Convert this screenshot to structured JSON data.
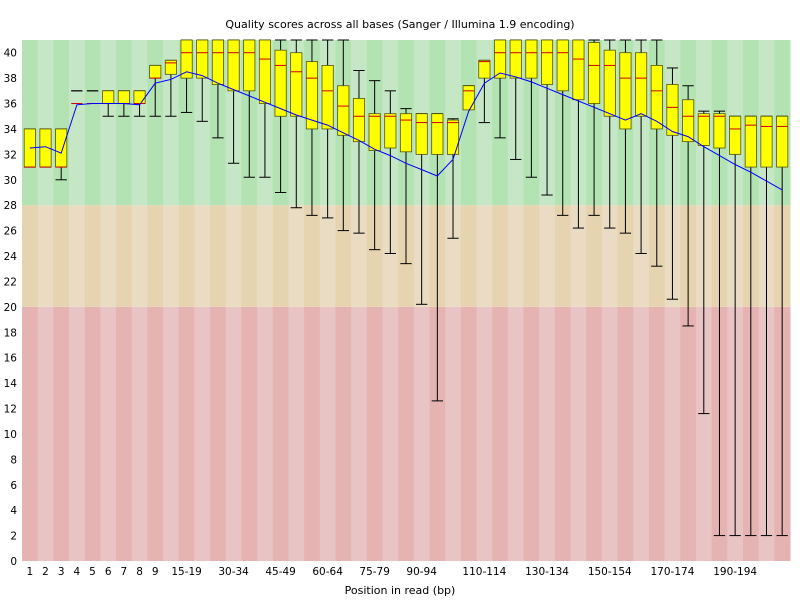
{
  "chart_data": {
    "type": "boxplot",
    "title": "Quality scores across all bases (Sanger / Illumina 1.9 encoding)",
    "xlabel": "Position in read (bp)",
    "ylabel": "",
    "ylim": [
      0,
      41
    ],
    "yticks": [
      0,
      2,
      4,
      6,
      8,
      10,
      12,
      14,
      16,
      18,
      20,
      22,
      24,
      26,
      28,
      30,
      32,
      34,
      36,
      38,
      40
    ],
    "bands": [
      {
        "name": "poor",
        "from": 0,
        "to": 20,
        "color_a": "#e6b3b3",
        "color_b": "#e8c4c4"
      },
      {
        "name": "reasonable",
        "from": 20,
        "to": 28,
        "color_a": "#e6d4b0",
        "color_b": "#e9dcc2"
      },
      {
        "name": "good",
        "from": 28,
        "to": 41,
        "color_a": "#b3e3b3",
        "color_b": "#c6e7c6"
      }
    ],
    "colors": {
      "box": "#ffff00",
      "box_stroke": "#555500",
      "median": "#cc0000",
      "mean_line": "#0000ff",
      "whisker": "#000000"
    },
    "categories": [
      "1",
      "2",
      "3",
      "4",
      "5",
      "6",
      "7",
      "8",
      "9",
      "10-14",
      "15-19",
      "20-24",
      "25-29",
      "30-34",
      "35-39",
      "40-44",
      "45-49",
      "50-54",
      "55-59",
      "60-64",
      "65-69",
      "70-74",
      "75-79",
      "80-84",
      "85-89",
      "90-94",
      "95-99",
      "100-104",
      "105-109",
      "110-114",
      "115-119",
      "120-124",
      "125-129",
      "130-134",
      "135-139",
      "140-144",
      "145-149",
      "150-154",
      "155-159",
      "160-164",
      "165-169",
      "170-174",
      "175-179",
      "180-184",
      "185-189",
      "190-194",
      "195-199",
      "200-204",
      "205-209"
    ],
    "tick_labels": [
      "1",
      "2",
      "3",
      "4",
      "5",
      "6",
      "7",
      "8",
      "9",
      "15-19",
      "30-34",
      "45-49",
      "60-64",
      "75-79",
      "90-94",
      "110-114",
      "130-134",
      "150-154",
      "170-174",
      "190-194"
    ],
    "tick_indices": [
      0,
      1,
      2,
      3,
      4,
      5,
      6,
      7,
      8,
      10,
      13,
      16,
      19,
      22,
      25,
      29,
      33,
      37,
      41,
      45
    ],
    "series": {
      "q1": [
        31,
        31,
        31,
        36,
        36,
        36,
        36,
        36,
        38,
        38.3,
        38,
        38,
        37.5,
        37,
        37,
        36,
        35,
        35,
        34,
        34,
        33.5,
        33,
        32.3,
        32.5,
        32.2,
        32,
        32,
        32,
        35.5,
        38,
        38,
        38,
        38,
        37.5,
        37,
        36.3,
        36,
        35,
        34,
        35,
        34,
        33.5,
        33,
        32.7,
        32.5,
        32,
        31,
        31,
        31
      ],
      "median": [
        31,
        31,
        31,
        36,
        36,
        36,
        36,
        36,
        38,
        39.2,
        40,
        40,
        40,
        40,
        40,
        39.5,
        39,
        38.5,
        38,
        37,
        35.8,
        35,
        35,
        35,
        34.7,
        34.5,
        34.5,
        34.5,
        37,
        39.3,
        40,
        40,
        40,
        40,
        40,
        39.5,
        39,
        39,
        38,
        38,
        37,
        35.7,
        35,
        35,
        35,
        34,
        34.3,
        34.2,
        34.2
      ],
      "q3": [
        34,
        34,
        34,
        36,
        36,
        37,
        37,
        37,
        39,
        39.4,
        41,
        41,
        41,
        41,
        41,
        41,
        40.2,
        40,
        39.3,
        39,
        37.4,
        36.4,
        35.2,
        35.2,
        35.2,
        35.2,
        35.2,
        34.7,
        37.4,
        39.4,
        41,
        41,
        41,
        41,
        41,
        41,
        40.8,
        40.2,
        40,
        40,
        39,
        37.5,
        36.3,
        35.2,
        35.2,
        35,
        35,
        35,
        35
      ],
      "low": [
        31,
        31,
        30,
        37,
        37,
        35,
        35,
        35,
        35,
        35,
        35.3,
        34.6,
        33.3,
        31.3,
        30.2,
        30.2,
        29,
        27.8,
        27.2,
        27,
        26,
        25.8,
        24.5,
        24.2,
        23.4,
        20.2,
        12.6,
        25.4,
        35.6,
        34.5,
        33.3,
        31.6,
        30.2,
        28.8,
        27.2,
        26.2,
        27.2,
        26.2,
        25.8,
        24.2,
        23.2,
        20.6,
        18.5,
        11.6,
        2,
        2,
        2,
        2,
        2
      ],
      "high": [
        34,
        34,
        34,
        37,
        37,
        37,
        37,
        37,
        39,
        39.4,
        41,
        41,
        41,
        41,
        41,
        41,
        41,
        41,
        41,
        41,
        41,
        38.6,
        37.8,
        37,
        35.6,
        35.2,
        35.2,
        34.8,
        37.4,
        39.4,
        41,
        41,
        41,
        41,
        41,
        41,
        41,
        41,
        41,
        41,
        41,
        38.8,
        37.4,
        35.4,
        35.4,
        35,
        35,
        35,
        35
      ],
      "mean": [
        32.5,
        32.6,
        32.1,
        35.9,
        36,
        36,
        36,
        35.9,
        37.6,
        37.9,
        38.5,
        38.2,
        37.6,
        37.1,
        36.6,
        36.1,
        35.6,
        35.1,
        34.7,
        34.3,
        33.7,
        33.1,
        32.4,
        31.9,
        31.3,
        30.8,
        30.3,
        31.6,
        35.4,
        37.6,
        38.4,
        38.1,
        37.7,
        37.2,
        36.7,
        36.2,
        35.7,
        35.2,
        34.7,
        35.2,
        34.6,
        33.8,
        33.4,
        32.6,
        31.9,
        31.2,
        30.6,
        29.9,
        29.2
      ]
    }
  }
}
